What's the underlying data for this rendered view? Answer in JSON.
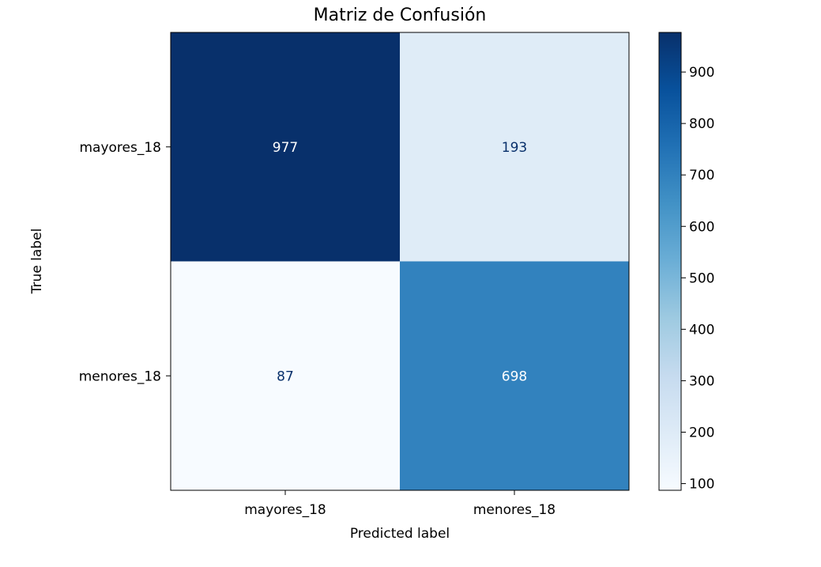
{
  "chart_data": {
    "type": "heatmap",
    "title": "Matriz de Confusión",
    "xlabel": "Predicted label",
    "ylabel": "True label",
    "x_categories": [
      "mayores_18",
      "menores_18"
    ],
    "y_categories": [
      "mayores_18",
      "menores_18"
    ],
    "values": [
      [
        977,
        193
      ],
      [
        87,
        698
      ]
    ],
    "colormap": "Blues",
    "colorbar": {
      "min": 87,
      "max": 977,
      "ticks": [
        100,
        200,
        300,
        400,
        500,
        600,
        700,
        800,
        900
      ]
    }
  }
}
